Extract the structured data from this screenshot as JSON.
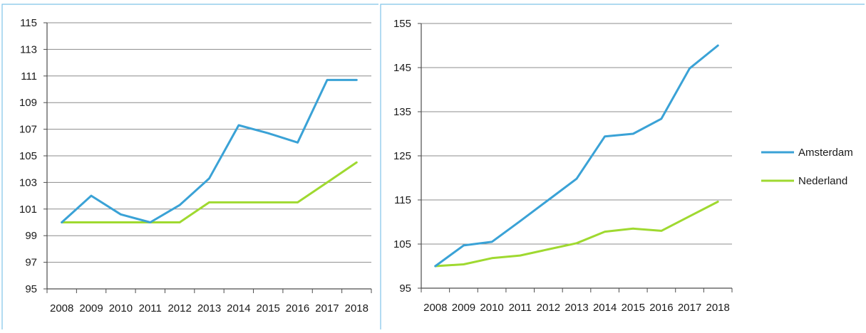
{
  "colors": {
    "amsterdam": "#3aa2d6",
    "nederland": "#9fd930",
    "grid": "#8c8c8c",
    "axis": "#4d4d4d",
    "frame": "#7fc3e8",
    "text": "#1a1a1a"
  },
  "legend": {
    "items": [
      {
        "label": "Amsterdam",
        "color": "#3aa2d6"
      },
      {
        "label": "Nederland",
        "color": "#9fd930"
      }
    ]
  },
  "chart_data": [
    {
      "type": "line",
      "categories": [
        "2008",
        "2009",
        "2010",
        "2011",
        "2012",
        "2013",
        "2014",
        "2015",
        "2016",
        "2017",
        "2018"
      ],
      "ylim": [
        95,
        115
      ],
      "yticks": [
        95,
        97,
        99,
        101,
        103,
        105,
        107,
        109,
        111,
        113,
        115
      ],
      "grid": true,
      "series": [
        {
          "name": "Amsterdam",
          "color": "#3aa2d6",
          "values": [
            100,
            102.0,
            100.6,
            100.0,
            101.3,
            103.3,
            107.3,
            106.7,
            106.0,
            110.7,
            110.7
          ]
        },
        {
          "name": "Nederland",
          "color": "#9fd930",
          "values": [
            100,
            100,
            100,
            100,
            100,
            101.5,
            101.5,
            101.5,
            101.5,
            103.0,
            104.5
          ]
        }
      ]
    },
    {
      "type": "line",
      "categories": [
        "2008",
        "2009",
        "2010",
        "2011",
        "2012",
        "2013",
        "2014",
        "2015",
        "2016",
        "2017",
        "2018"
      ],
      "ylim": [
        95,
        155
      ],
      "yticks": [
        95,
        105,
        115,
        125,
        135,
        145,
        155
      ],
      "grid": true,
      "legend_position": "right",
      "series": [
        {
          "name": "Amsterdam",
          "color": "#3aa2d6",
          "values": [
            100,
            104.7,
            105.5,
            110.2,
            115.0,
            119.8,
            129.4,
            130.0,
            133.4,
            144.8,
            150.0
          ]
        },
        {
          "name": "Nederland",
          "color": "#9fd930",
          "values": [
            100,
            100.4,
            101.8,
            102.4,
            103.8,
            105.2,
            107.8,
            108.5,
            108.0,
            111.3,
            114.6
          ]
        }
      ]
    }
  ]
}
